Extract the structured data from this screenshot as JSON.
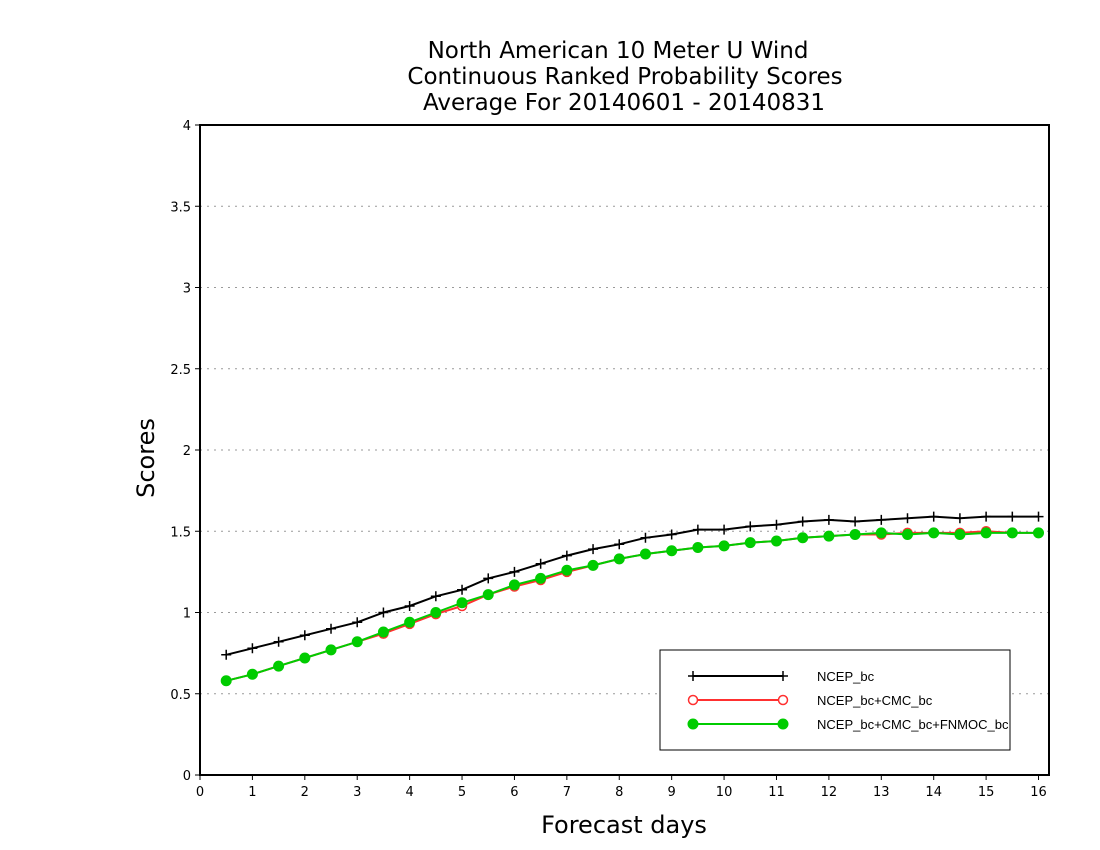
{
  "chart_data": {
    "type": "line",
    "title": [
      "North American 10 Meter U Wind",
      "Continuous Ranked Probability Scores",
      "Average For 20140601 - 20140831"
    ],
    "xlabel": "Forecast days",
    "ylabel": "Scores",
    "xlim": [
      0,
      16.2
    ],
    "ylim": [
      0,
      4
    ],
    "xticks": [
      "0",
      "1",
      "2",
      "3",
      "4",
      "5",
      "6",
      "7",
      "8",
      "9",
      "10",
      "11",
      "12",
      "13",
      "14",
      "15",
      "16"
    ],
    "yticks": [
      "0",
      "0.5",
      "1",
      "1.5",
      "2",
      "2.5",
      "3",
      "3.5",
      "4"
    ],
    "grid": "horizontal dotted",
    "legend_position": "bottom-right",
    "x": [
      0.5,
      1,
      1.5,
      2,
      2.5,
      3,
      3.5,
      4,
      4.5,
      5,
      5.5,
      6,
      6.5,
      7,
      7.5,
      8,
      8.5,
      9,
      9.5,
      10,
      10.5,
      11,
      11.5,
      12,
      12.5,
      13,
      13.5,
      14,
      14.5,
      15,
      15.5,
      16
    ],
    "series": [
      {
        "name": "NCEP_bc",
        "color": "#000000",
        "marker": "plus",
        "values": [
          0.74,
          0.78,
          0.82,
          0.86,
          0.9,
          0.94,
          1.0,
          1.04,
          1.1,
          1.14,
          1.21,
          1.25,
          1.3,
          1.35,
          1.39,
          1.42,
          1.46,
          1.48,
          1.51,
          1.51,
          1.53,
          1.54,
          1.56,
          1.57,
          1.56,
          1.57,
          1.58,
          1.59,
          1.58,
          1.59,
          1.59,
          1.59
        ]
      },
      {
        "name": "NCEP_bc+CMC_bc",
        "color": "#ff3030",
        "marker": "open-circle",
        "values": [
          0.58,
          0.62,
          0.67,
          0.72,
          0.77,
          0.82,
          0.87,
          0.93,
          0.99,
          1.04,
          1.11,
          1.16,
          1.2,
          1.25,
          1.29,
          1.33,
          1.36,
          1.38,
          1.4,
          1.41,
          1.43,
          1.44,
          1.46,
          1.47,
          1.48,
          1.48,
          1.49,
          1.49,
          1.49,
          1.5,
          1.49,
          1.49
        ]
      },
      {
        "name": "NCEP_bc+CMC_bc+FNMOC_bc",
        "color": "#00cc00",
        "marker": "filled-circle",
        "values": [
          0.58,
          0.62,
          0.67,
          0.72,
          0.77,
          0.82,
          0.88,
          0.94,
          1.0,
          1.06,
          1.11,
          1.17,
          1.21,
          1.26,
          1.29,
          1.33,
          1.36,
          1.38,
          1.4,
          1.41,
          1.43,
          1.44,
          1.46,
          1.47,
          1.48,
          1.49,
          1.48,
          1.49,
          1.48,
          1.49,
          1.49,
          1.49
        ]
      }
    ]
  }
}
